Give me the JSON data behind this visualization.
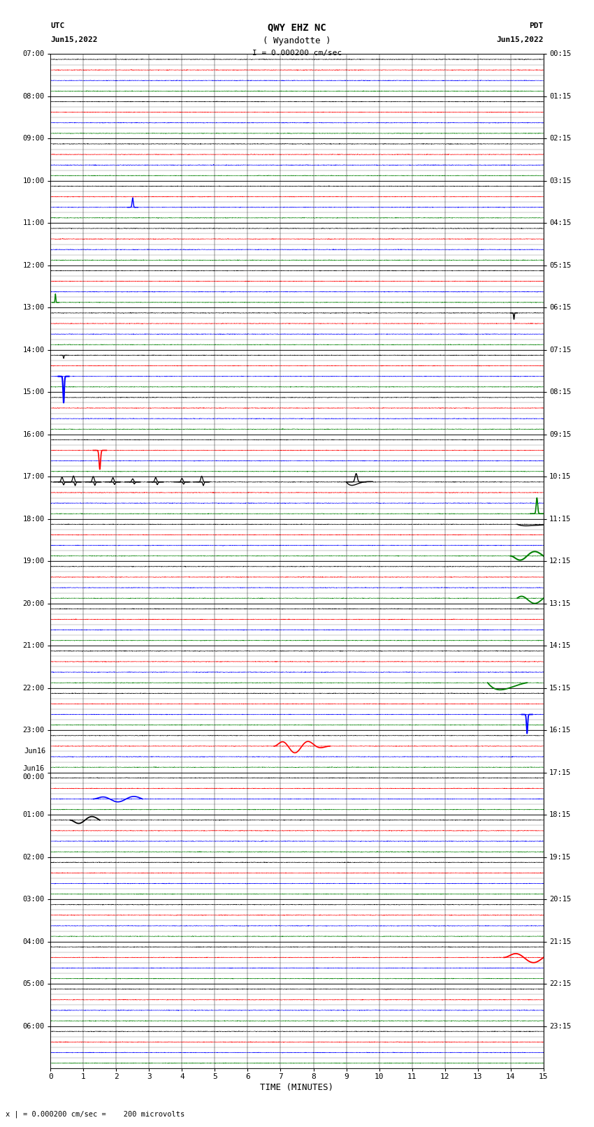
{
  "title_line1": "QWY EHZ NC",
  "title_line2": "( Wyandotte )",
  "scale_label": "I = 0.000200 cm/sec",
  "left_label": "UTC",
  "left_date": "Jun15,2022",
  "right_label": "PDT",
  "right_date": "Jun15,2022",
  "xlabel": "TIME (MINUTES)",
  "bottom_note": "x | = 0.000200 cm/sec =    200 microvolts",
  "xmin": 0,
  "xmax": 15,
  "num_hours": 24,
  "traces_per_hour": 4,
  "trace_colors": [
    "black",
    "red",
    "blue",
    "green"
  ],
  "utc_labels": [
    "07:00",
    "08:00",
    "09:00",
    "10:00",
    "11:00",
    "12:00",
    "13:00",
    "14:00",
    "15:00",
    "16:00",
    "17:00",
    "18:00",
    "19:00",
    "20:00",
    "21:00",
    "22:00",
    "23:00",
    "Jun16\n00:00",
    "01:00",
    "02:00",
    "03:00",
    "04:00",
    "05:00",
    "06:00"
  ],
  "pdt_labels": [
    "00:15",
    "01:15",
    "02:15",
    "03:15",
    "04:15",
    "05:15",
    "06:15",
    "07:15",
    "08:15",
    "09:15",
    "10:15",
    "11:15",
    "12:15",
    "13:15",
    "14:15",
    "15:15",
    "16:15",
    "17:15",
    "18:15",
    "19:15",
    "20:15",
    "21:15",
    "22:15",
    "23:15"
  ],
  "noise_std": 0.012,
  "background_color": "white",
  "fig_width": 8.5,
  "fig_height": 16.13
}
